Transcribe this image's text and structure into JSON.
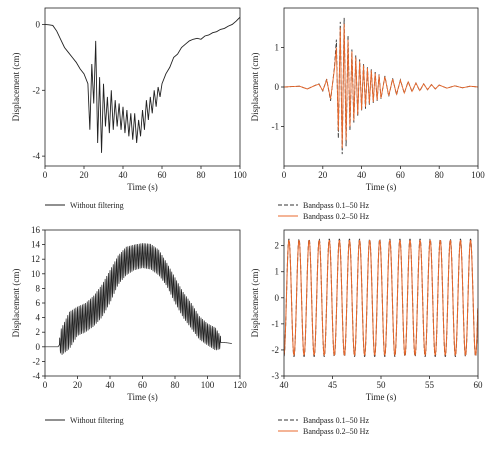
{
  "colors": {
    "black": "#222222",
    "dash": "#333333",
    "orange": "#e8682c"
  },
  "chart_data": [
    {
      "type": "line",
      "ylabel": "Displacement (cm)",
      "xlabel": "Time (s)",
      "xlim": [
        0,
        100
      ],
      "ylim": [
        -4.3,
        0.5
      ],
      "xticks": [
        0,
        20,
        40,
        60,
        80,
        100
      ],
      "yticks": [
        0,
        -2,
        -4
      ],
      "legend": "bottom",
      "series": [
        {
          "name": "Without filtering",
          "style": "solid",
          "color": "black",
          "x": [
            0,
            2,
            4,
            6,
            8,
            10,
            12,
            14,
            16,
            18,
            20,
            22,
            23,
            24,
            25,
            26,
            27,
            28,
            29,
            30,
            31,
            32,
            33,
            34,
            35,
            36,
            37,
            38,
            39,
            40,
            41,
            42,
            43,
            44,
            45,
            46,
            47,
            48,
            49,
            50,
            51,
            52,
            53,
            54,
            55,
            56,
            57,
            58,
            59,
            60,
            62,
            64,
            66,
            68,
            70,
            72,
            74,
            76,
            78,
            80,
            82,
            84,
            86,
            88,
            90,
            92,
            94,
            96,
            98,
            100
          ],
          "y": [
            0.0,
            -0.01,
            -0.03,
            -0.2,
            -0.45,
            -0.7,
            -0.85,
            -1.0,
            -1.15,
            -1.35,
            -1.5,
            -1.8,
            -3.2,
            -1.2,
            -2.4,
            -0.5,
            -3.6,
            -1.6,
            -3.9,
            -1.8,
            -3.1,
            -2.2,
            -3.3,
            -2.0,
            -3.2,
            -2.3,
            -3.1,
            -2.4,
            -3.2,
            -2.5,
            -3.3,
            -2.6,
            -3.4,
            -2.7,
            -3.5,
            -2.7,
            -3.6,
            -2.9,
            -3.4,
            -2.6,
            -3.2,
            -2.3,
            -2.9,
            -2.2,
            -2.7,
            -2.0,
            -2.5,
            -1.9,
            -2.2,
            -1.8,
            -1.5,
            -1.3,
            -1.0,
            -0.9,
            -0.7,
            -0.6,
            -0.5,
            -0.45,
            -0.42,
            -0.45,
            -0.35,
            -0.32,
            -0.25,
            -0.22,
            -0.15,
            -0.12,
            -0.05,
            0.0,
            0.1,
            0.22
          ]
        }
      ]
    },
    {
      "type": "line",
      "ylabel": "Displacement (cm)",
      "xlabel": "Time (s)",
      "xlim": [
        0,
        100
      ],
      "ylim": [
        -2,
        2
      ],
      "xticks": [
        0,
        20,
        40,
        60,
        80,
        100
      ],
      "yticks": [
        -1,
        0,
        1
      ],
      "legend": "bottom",
      "series": [
        {
          "name": "Bandpass 0.1–50 Hz",
          "style": "dashed",
          "color": "dash",
          "x": [
            0,
            4,
            8,
            12,
            16,
            18,
            20,
            22,
            24,
            26,
            27,
            28,
            29,
            30,
            31,
            32,
            33,
            34,
            35,
            36,
            37,
            38,
            39,
            40,
            41,
            42,
            43,
            44,
            45,
            46,
            47,
            48,
            49,
            50,
            52,
            54,
            56,
            58,
            60,
            62,
            64,
            66,
            68,
            70,
            72,
            74,
            76,
            78,
            80,
            84,
            88,
            92,
            96,
            100
          ],
          "y": [
            0.0,
            0.01,
            0.02,
            -0.05,
            0.04,
            0.08,
            -0.1,
            0.2,
            -0.35,
            0.5,
            1.2,
            -1.3,
            1.65,
            -1.7,
            1.75,
            -1.5,
            1.3,
            -1.1,
            0.95,
            -0.9,
            0.8,
            -0.75,
            0.7,
            -0.6,
            0.6,
            -0.55,
            0.5,
            -0.45,
            0.45,
            -0.4,
            0.38,
            -0.35,
            0.32,
            -0.3,
            0.28,
            -0.24,
            0.22,
            -0.2,
            0.18,
            -0.16,
            0.14,
            -0.12,
            0.1,
            -0.1,
            0.08,
            -0.07,
            0.06,
            -0.05,
            0.05,
            -0.03,
            0.03,
            -0.02,
            0.02,
            0.0
          ]
        },
        {
          "name": "Bandpass 0.2–50 Hz",
          "style": "solid",
          "color": "orange",
          "x": [
            0,
            4,
            8,
            12,
            16,
            18,
            20,
            22,
            24,
            26,
            27,
            28,
            29,
            30,
            31,
            32,
            33,
            34,
            35,
            36,
            37,
            38,
            39,
            40,
            41,
            42,
            43,
            44,
            45,
            46,
            47,
            48,
            49,
            50,
            52,
            54,
            56,
            58,
            60,
            62,
            64,
            66,
            68,
            70,
            72,
            74,
            76,
            78,
            80,
            84,
            88,
            92,
            96,
            100
          ],
          "y": [
            0.0,
            0.01,
            0.02,
            -0.05,
            0.04,
            0.07,
            -0.09,
            0.18,
            -0.3,
            0.45,
            1.0,
            -1.1,
            1.5,
            -1.55,
            1.6,
            -1.35,
            1.2,
            -1.0,
            0.9,
            -0.85,
            0.75,
            -0.7,
            0.65,
            -0.58,
            0.55,
            -0.5,
            0.48,
            -0.42,
            0.42,
            -0.38,
            0.35,
            -0.33,
            0.3,
            -0.28,
            0.26,
            -0.22,
            0.2,
            -0.18,
            0.17,
            -0.15,
            0.13,
            -0.11,
            0.1,
            -0.09,
            0.08,
            -0.07,
            0.06,
            -0.05,
            0.05,
            -0.03,
            0.03,
            -0.02,
            0.02,
            0.0
          ]
        }
      ]
    },
    {
      "type": "line",
      "ylabel": "Displacement (cm)",
      "xlabel": "Time (s)",
      "xlim": [
        0,
        120
      ],
      "ylim": [
        -4,
        16
      ],
      "xticks": [
        0,
        20,
        40,
        60,
        80,
        100,
        120
      ],
      "yticks": [
        -4,
        -2,
        0,
        2,
        4,
        6,
        8,
        10,
        12,
        14,
        16
      ],
      "legend": "bottom",
      "oscillation": {
        "t_start": 9,
        "t_end": 108,
        "period_s": 1.0
      },
      "series": [
        {
          "name": "Without filtering",
          "style": "solid",
          "color": "black",
          "envelope_x": [
            0,
            8,
            10,
            15,
            20,
            25,
            30,
            35,
            40,
            45,
            50,
            55,
            60,
            65,
            70,
            75,
            80,
            85,
            90,
            95,
            100,
            105,
            108,
            112,
            115
          ],
          "upper": [
            0,
            0,
            2.5,
            4.8,
            5.5,
            6.0,
            7.0,
            8.5,
            10.5,
            12.5,
            13.7,
            14.0,
            14.2,
            14.1,
            13.3,
            11.5,
            9.5,
            7.5,
            6.0,
            4.2,
            3.2,
            2.6,
            1.5,
            0.6,
            0.5
          ],
          "lower": [
            0,
            0,
            -1.2,
            -0.3,
            1.5,
            2.0,
            2.8,
            4.0,
            6.0,
            8.5,
            9.8,
            10.5,
            10.8,
            10.6,
            9.8,
            8.3,
            6.0,
            4.0,
            2.5,
            1.0,
            0.2,
            -0.5,
            -0.3,
            0.5,
            0.4
          ]
        }
      ]
    },
    {
      "type": "line",
      "ylabel": "Displacement (cm)",
      "xlabel": "Time (s)",
      "xlim": [
        40,
        60
      ],
      "ylim": [
        -3,
        2.6
      ],
      "xticks": [
        40,
        45,
        50,
        55,
        60
      ],
      "yticks": [
        -3,
        -2,
        -1,
        0,
        1,
        2
      ],
      "legend": "bottom",
      "sine": {
        "period_s": 1.04,
        "phase_s": 40.25
      },
      "series": [
        {
          "name": "Bandpass 0.1–50 Hz",
          "style": "dashed",
          "color": "dash",
          "amplitude": 2.25
        },
        {
          "name": "Bandpass 0.2–50 Hz",
          "style": "solid",
          "color": "orange",
          "amplitude": 2.2
        }
      ]
    }
  ]
}
